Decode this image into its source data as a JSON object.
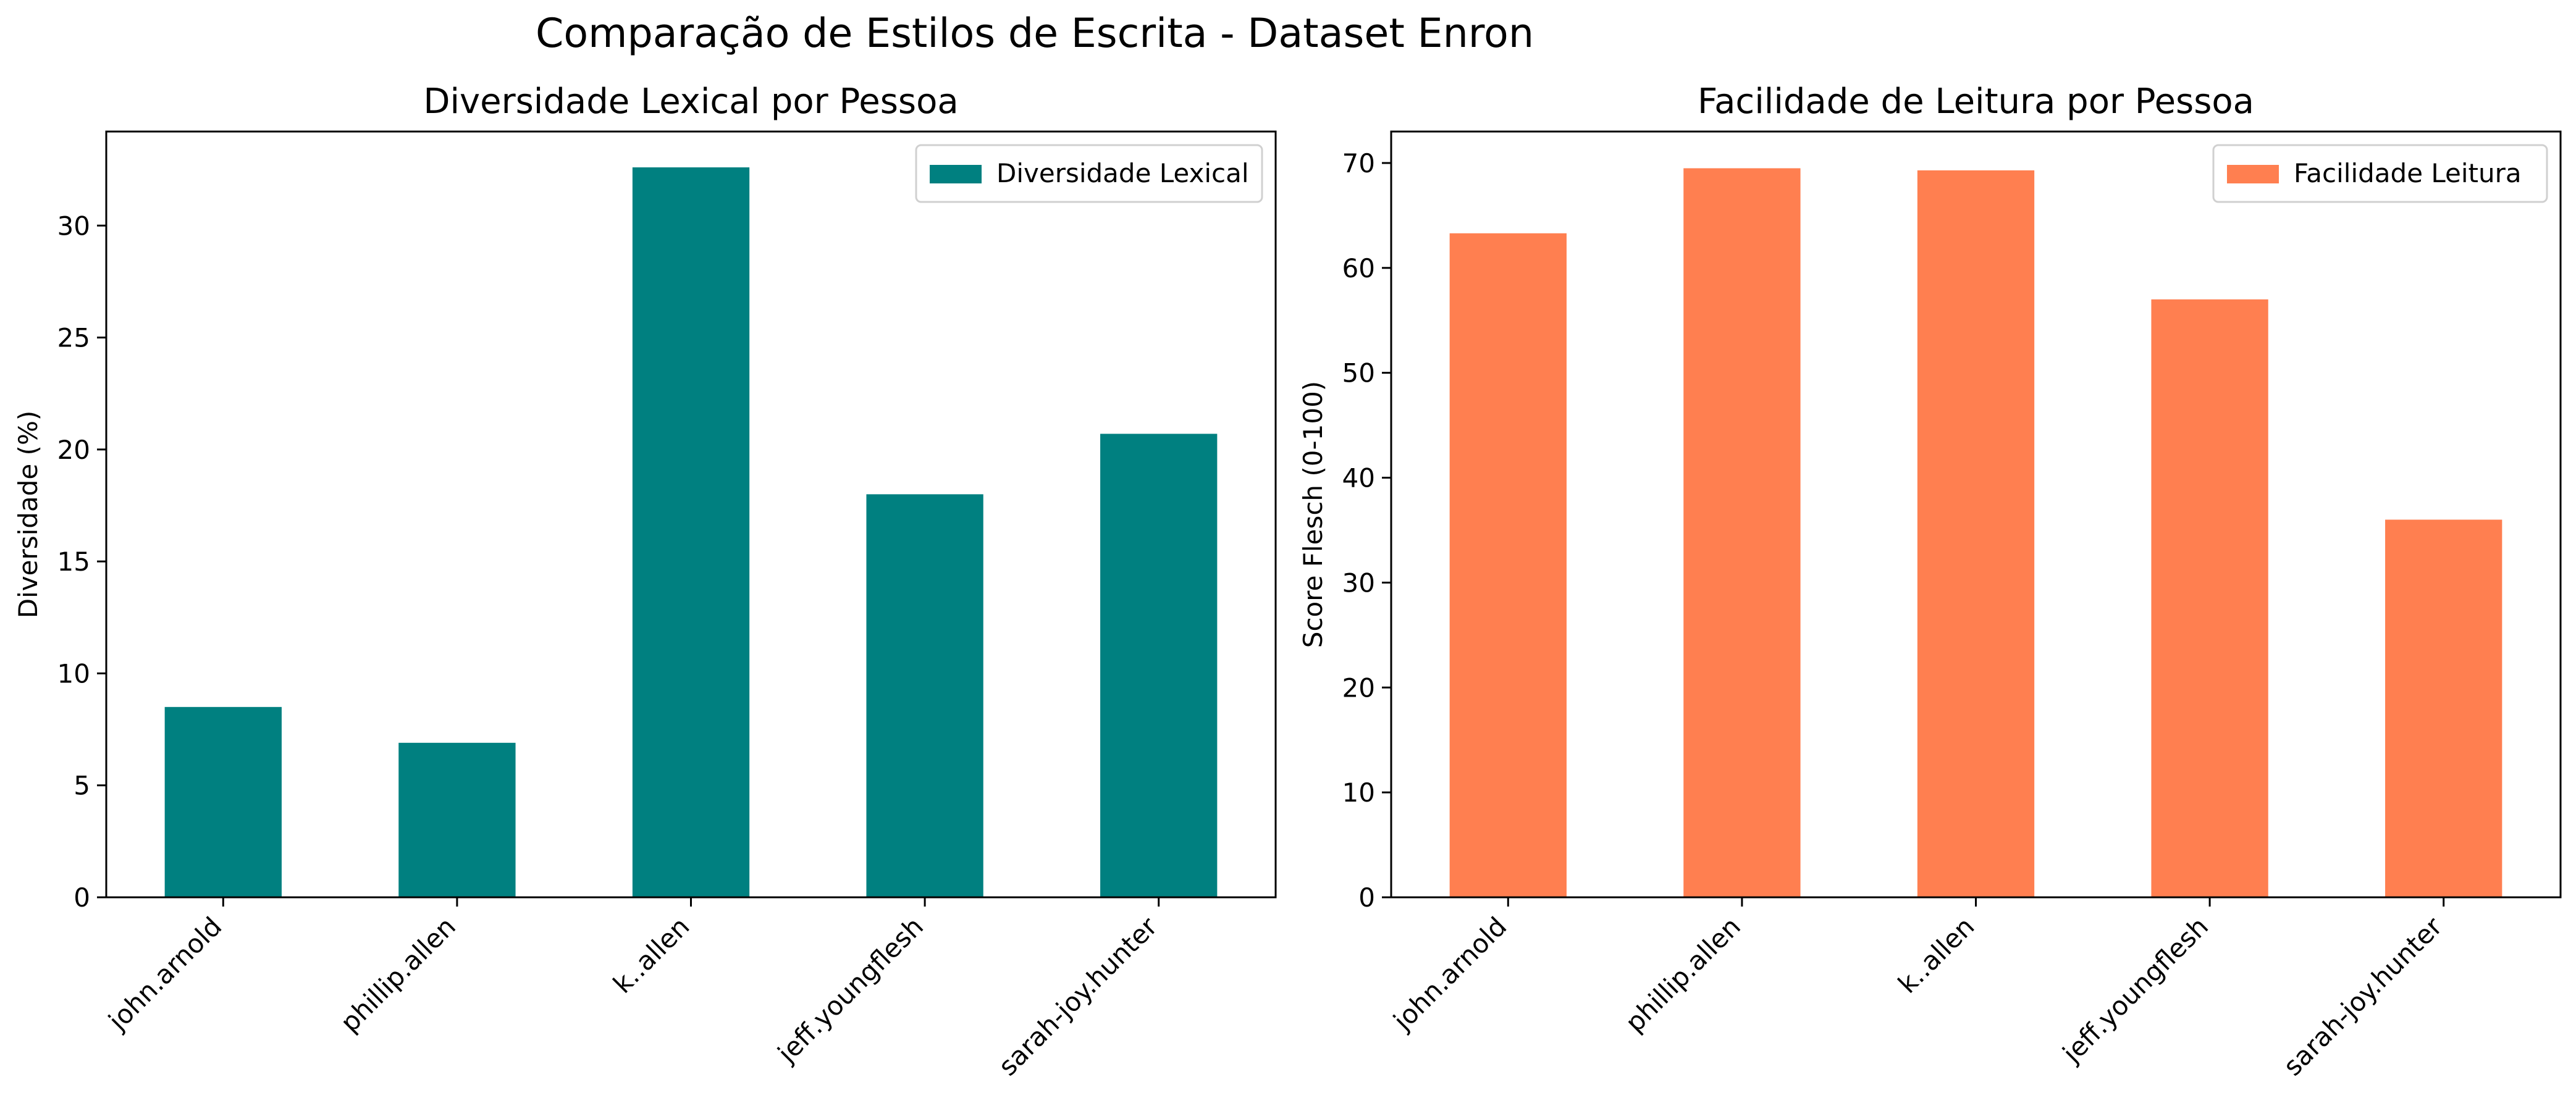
{
  "figure": {
    "title": "Comparação de Estilos de Escrita - Dataset Enron"
  },
  "chart_data": [
    {
      "type": "bar",
      "title": "Diversidade Lexical por Pessoa",
      "xlabel": "",
      "ylabel": "Diversidade (%)",
      "categories": [
        "john.arnold",
        "phillip.allen",
        "k..allen",
        "jeff.youngflesh",
        "sarah-joy.hunter"
      ],
      "series": [
        {
          "name": "Diversidade Lexical",
          "values": [
            8.5,
            6.9,
            32.6,
            18.0,
            20.7
          ],
          "color": "#008080"
        }
      ],
      "ylim": [
        0,
        34.2
      ],
      "yticks": [
        0,
        5,
        10,
        15,
        20,
        25,
        30
      ],
      "legend": "top-right",
      "grid": false
    },
    {
      "type": "bar",
      "title": "Facilidade de Leitura por Pessoa",
      "xlabel": "",
      "ylabel": "Score Flesch (0-100)",
      "categories": [
        "john.arnold",
        "phillip.allen",
        "k..allen",
        "jeff.youngflesh",
        "sarah-joy.hunter"
      ],
      "series": [
        {
          "name": "Facilidade Leitura",
          "values": [
            63.3,
            69.5,
            69.3,
            57.0,
            36.0
          ],
          "color": "#ff7f50"
        }
      ],
      "ylim": [
        0,
        73.0
      ],
      "yticks": [
        0,
        10,
        20,
        30,
        40,
        50,
        60,
        70
      ],
      "legend": "top-right",
      "grid": false
    }
  ]
}
